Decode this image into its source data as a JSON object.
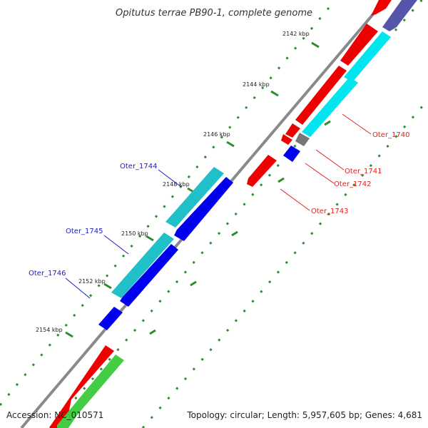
{
  "title": "Opitutus terrae PB90-1, complete genome",
  "footer": {
    "accession": "Accession: NC_010571",
    "summary": "Topology: circular; Length: 5,957,605 bp; Genes: 4,681"
  },
  "ticks": [
    {
      "label": "2142 kbp"
    },
    {
      "label": "2144 kbp"
    },
    {
      "label": "2146 kbp"
    },
    {
      "label": "2148 kbp"
    },
    {
      "label": "2150 kbp"
    },
    {
      "label": "2152 kbp"
    },
    {
      "label": "2154 kbp"
    }
  ],
  "genes": [
    {
      "name": "Oter_1740",
      "color": "#dd2222"
    },
    {
      "name": "Oter_1741",
      "color": "#dd2222"
    },
    {
      "name": "Oter_1742",
      "color": "#dd2222"
    },
    {
      "name": "Oter_1743",
      "color": "#dd2222"
    },
    {
      "name": "Oter_1744",
      "color": "#1a1acc"
    },
    {
      "name": "Oter_1745",
      "color": "#1a1acc"
    },
    {
      "name": "Oter_1746",
      "color": "#1a1acc"
    }
  ],
  "colors": {
    "backbone": "#8a8a8a",
    "forward_cds": "#ee0000",
    "forward_rna": "#00e5ee",
    "reverse_cds": "#0000ee",
    "reverse_rna": "#20c0c8",
    "green_feature": "#44cc44",
    "purple_feature": "#5555aa",
    "gray_feature": "#777777",
    "dots": "#2e8b2e"
  }
}
